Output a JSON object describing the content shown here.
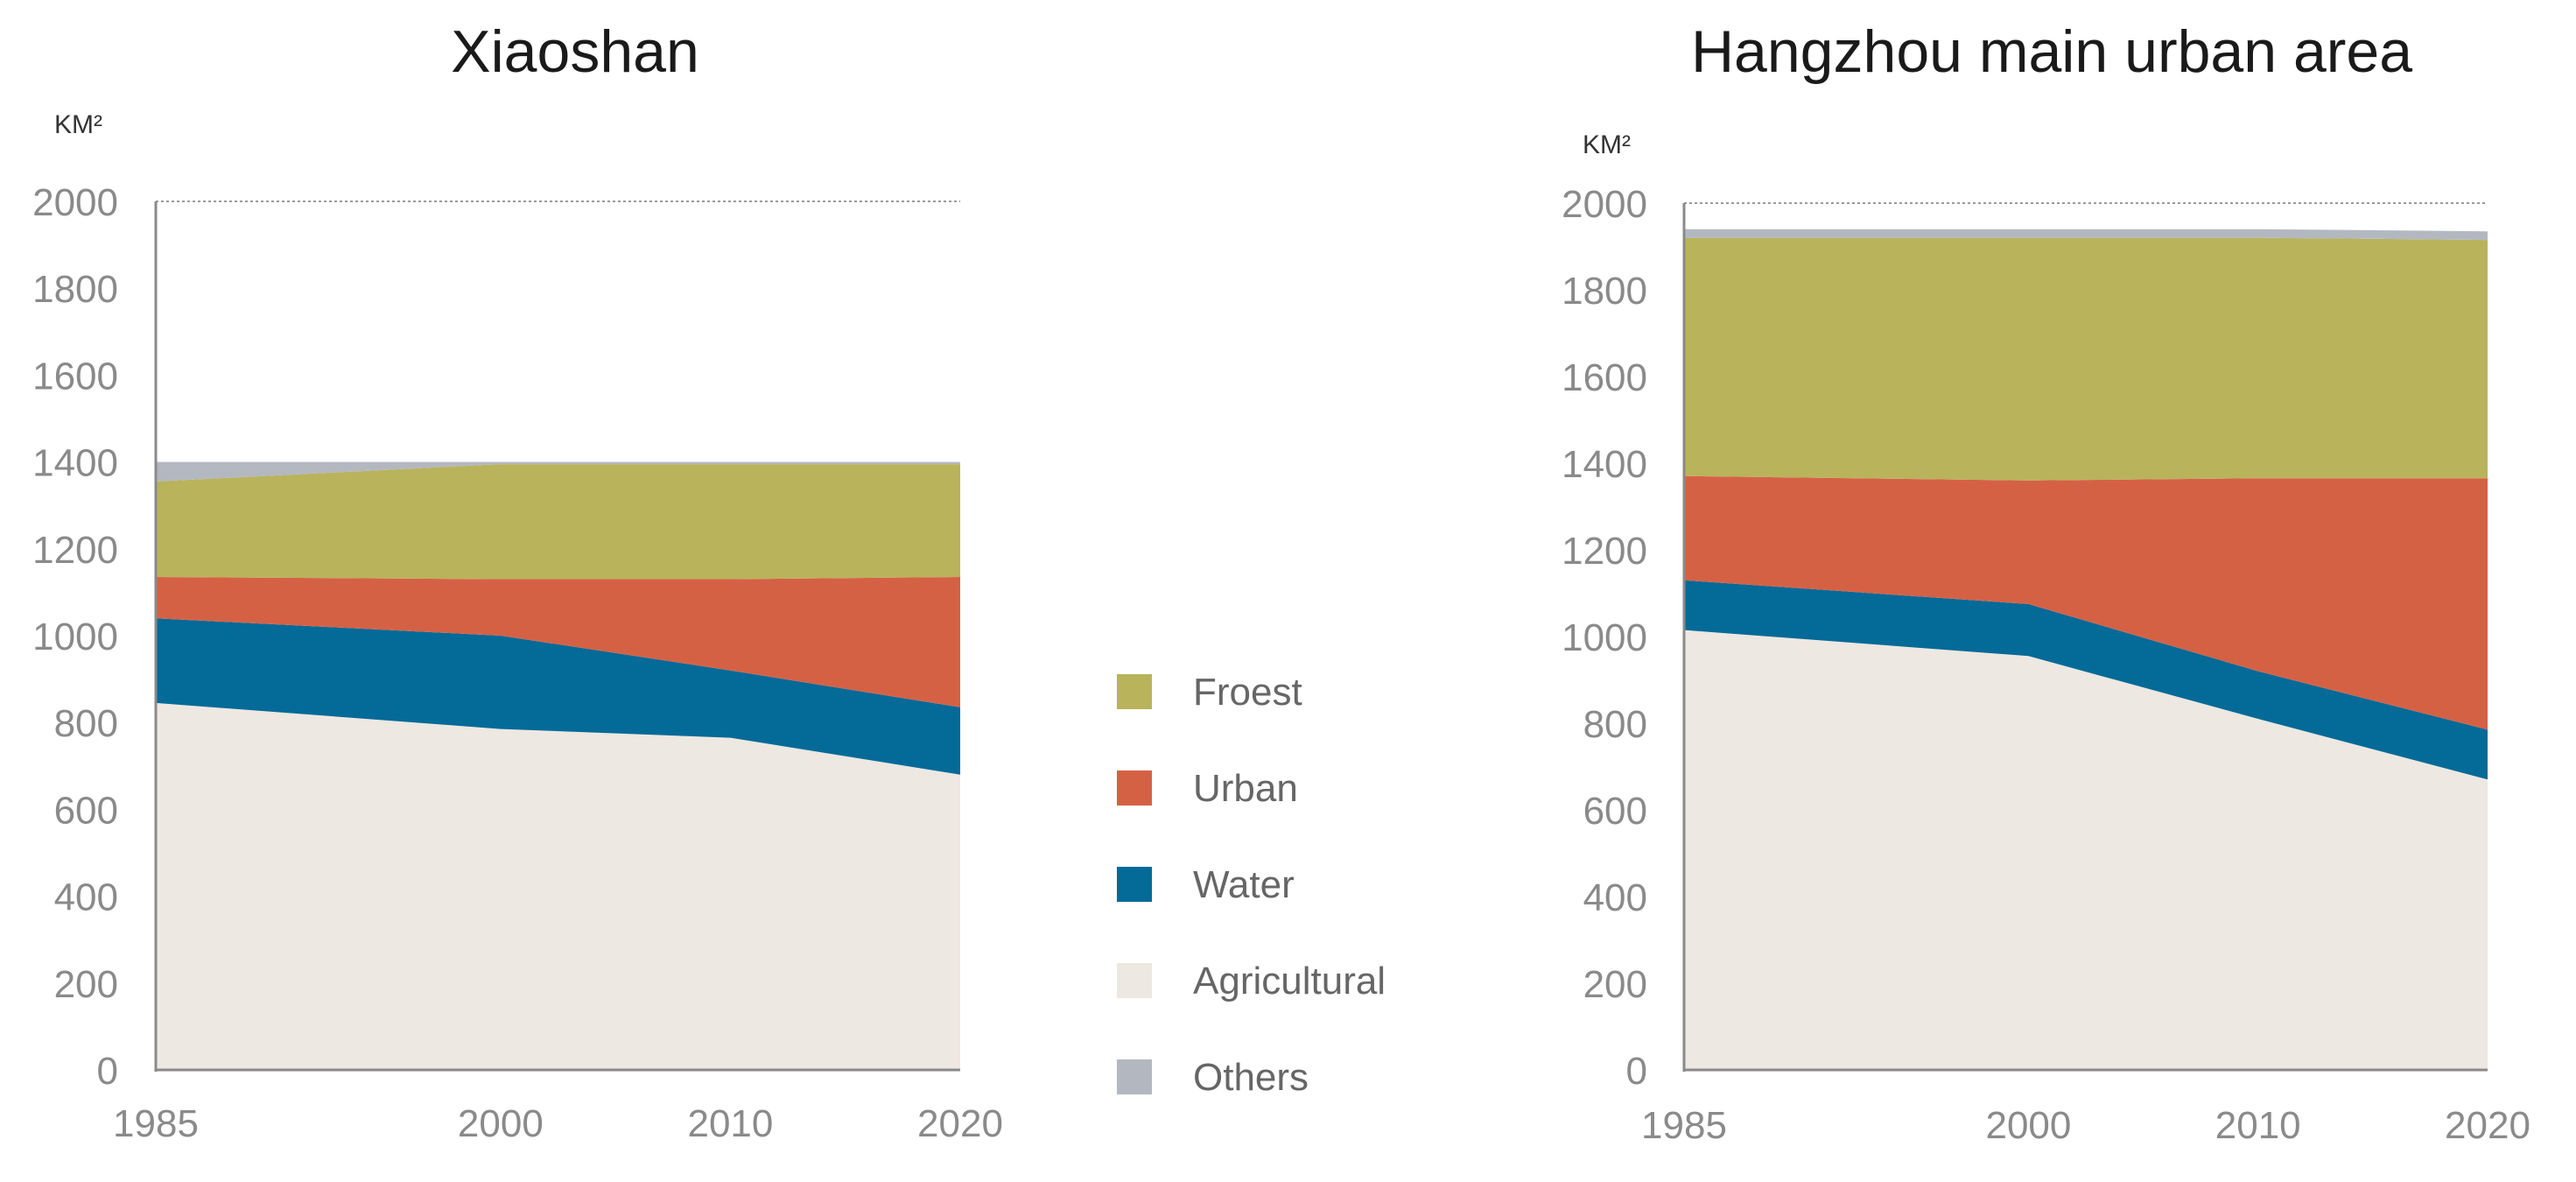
{
  "chart_data": [
    {
      "type": "area",
      "stacked": true,
      "title": "Xiaoshan",
      "ylabel": "KM²",
      "ylim": [
        0,
        2000
      ],
      "yticks": [
        0,
        200,
        400,
        600,
        800,
        1000,
        1200,
        1400,
        1600,
        1800,
        2000
      ],
      "x": [
        1985,
        2000,
        2010,
        2020
      ],
      "series": [
        {
          "name": "Agricultural",
          "values": [
            845,
            785,
            765,
            680
          ]
        },
        {
          "name": "Water",
          "values": [
            195,
            215,
            155,
            155
          ]
        },
        {
          "name": "Urban",
          "values": [
            95,
            130,
            210,
            300
          ]
        },
        {
          "name": "Froest",
          "values": [
            220,
            265,
            265,
            260
          ]
        },
        {
          "name": "Others",
          "values": [
            45,
            5,
            5,
            5
          ]
        }
      ]
    },
    {
      "type": "area",
      "stacked": true,
      "title": "Hangzhou main urban area",
      "ylabel": "KM²",
      "ylim": [
        0,
        2000
      ],
      "yticks": [
        0,
        200,
        400,
        600,
        800,
        1000,
        1200,
        1400,
        1600,
        1800,
        2000
      ],
      "x": [
        1985,
        2000,
        2010,
        2020
      ],
      "series": [
        {
          "name": "Agricultural",
          "values": [
            1015,
            955,
            810,
            670
          ]
        },
        {
          "name": "Water",
          "values": [
            115,
            120,
            110,
            115
          ]
        },
        {
          "name": "Urban",
          "values": [
            240,
            285,
            445,
            580
          ]
        },
        {
          "name": "Froest",
          "values": [
            550,
            560,
            555,
            550
          ]
        },
        {
          "name": "Others",
          "values": [
            20,
            20,
            20,
            20
          ]
        }
      ]
    }
  ],
  "legend": [
    {
      "name": "Froest",
      "color": "#b9b35c"
    },
    {
      "name": "Urban",
      "color": "#d56145"
    },
    {
      "name": "Water",
      "color": "#046a98"
    },
    {
      "name": "Agricultural",
      "color": "#ede8e1"
    },
    {
      "name": "Others",
      "color": "#b3b8c0"
    }
  ]
}
